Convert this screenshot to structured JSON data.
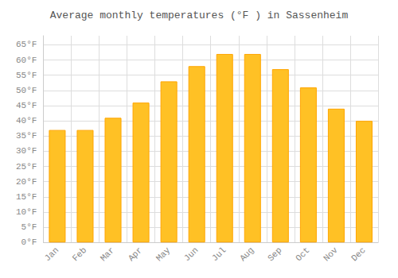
{
  "chart_data": {
    "type": "bar",
    "title": "Average monthly temperatures (°F ) in Sassenheim",
    "categories": [
      "Jan",
      "Feb",
      "Mar",
      "Apr",
      "May",
      "Jun",
      "Jul",
      "Aug",
      "Sep",
      "Oct",
      "Nov",
      "Dec"
    ],
    "values": [
      37,
      37,
      41,
      46,
      53,
      58,
      62,
      62,
      57,
      51,
      44,
      40
    ],
    "color": "#FFC125",
    "ylim": [
      0,
      68
    ],
    "yticks": [
      {
        "value": 0,
        "label": "0°F"
      },
      {
        "value": 5,
        "label": "5°F"
      },
      {
        "value": 10,
        "label": "10°F"
      },
      {
        "value": 15,
        "label": "15°F"
      },
      {
        "value": 20,
        "label": "20°F"
      },
      {
        "value": 25,
        "label": "25°F"
      },
      {
        "value": 30,
        "label": "30°F"
      },
      {
        "value": 35,
        "label": "35°F"
      },
      {
        "value": 40,
        "label": "40°F"
      },
      {
        "value": 45,
        "label": "45°F"
      },
      {
        "value": 50,
        "label": "50°F"
      },
      {
        "value": 55,
        "label": "55°F"
      },
      {
        "value": 60,
        "label": "60°F"
      },
      {
        "value": 65,
        "label": "65°F"
      }
    ],
    "grid": true
  }
}
